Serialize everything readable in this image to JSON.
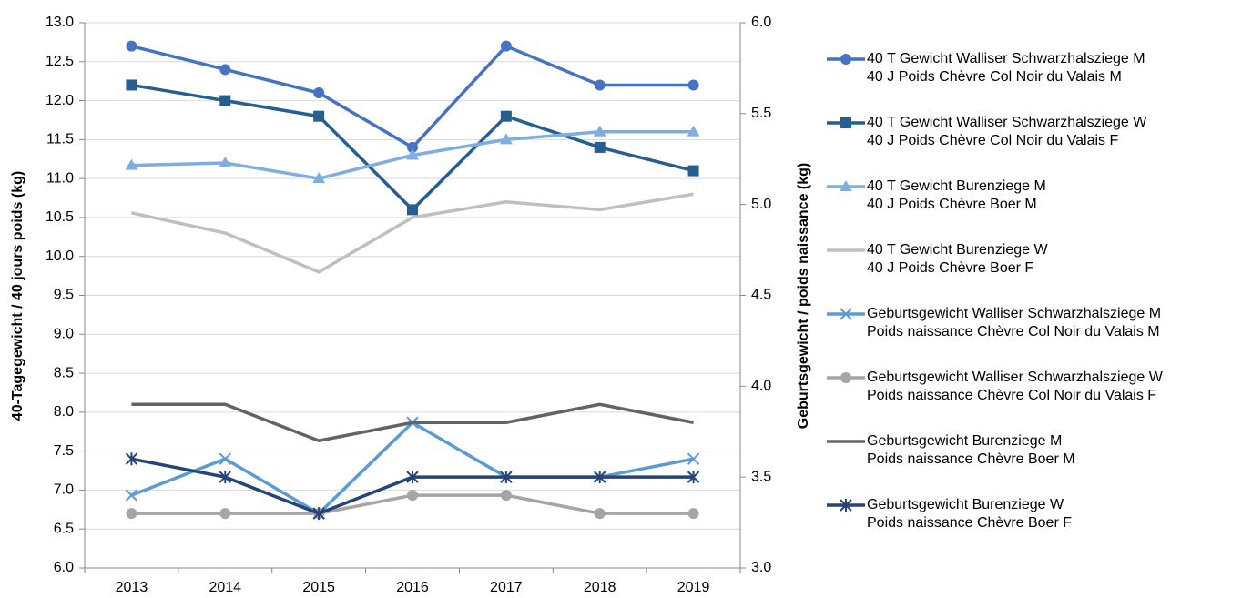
{
  "chart_data": {
    "type": "line",
    "categories": [
      "2013",
      "2014",
      "2015",
      "2016",
      "2017",
      "2018",
      "2019"
    ],
    "y_label": "40-Tagegewicht / 40 jours poids (kg)",
    "y2_label": "Geburtsgewicht / poids naissance (kg)",
    "ylim": [
      6,
      13
    ],
    "yticks": [
      {
        "value": 6,
        "label": "6.0"
      },
      6.5,
      {
        "value": 7,
        "label": "7.0"
      },
      7.5,
      {
        "value": 8,
        "label": "8.0"
      },
      8.5,
      {
        "value": 9,
        "label": "9.0"
      },
      9.5,
      {
        "value": 10,
        "label": "10.0"
      },
      10.5,
      {
        "value": 11,
        "label": "11.0"
      },
      11.5,
      {
        "value": 12,
        "label": "12.0"
      },
      12.5,
      {
        "value": 13,
        "label": "13.0"
      }
    ],
    "y2lim": [
      3,
      6
    ],
    "y2ticks": [
      {
        "value": 3,
        "label": "3.0"
      },
      3.5,
      {
        "value": 4,
        "label": "4.0"
      },
      4.5,
      {
        "value": 5,
        "label": "5.0"
      },
      5.5,
      {
        "value": 6,
        "label": "6.0"
      }
    ],
    "grid": true,
    "legend": "right",
    "series": [
      {
        "name": "40 T Gewicht Walliser Schwarzhalsziege M\n40 J Poids Chèvre Col Noir du Valais M",
        "color": "#4472c4",
        "marker": "circle",
        "values": [
          12.7,
          12.4,
          12.1,
          11.4,
          12.7,
          12.2,
          12.2
        ]
      },
      {
        "name": "40 T Gewicht Walliser Schwarzhalsziege W\n40 J Poids Chèvre Col Noir du Valais F",
        "color": "#255e91",
        "marker": "square",
        "values": [
          12.2,
          12.0,
          11.8,
          10.6,
          11.8,
          11.4,
          11.1
        ]
      },
      {
        "name": "40 T Gewicht Burenziege M\n40 J Poids Chèvre Boer M",
        "color": "#7eaee0",
        "marker": "triangle",
        "values": [
          11.17,
          11.2,
          11.0,
          11.3,
          11.5,
          11.6,
          11.6
        ]
      },
      {
        "name": "40 T Gewicht Burenziege W\n40 J Poids Chèvre Boer F",
        "color": "#bfbfbf",
        "marker": "none",
        "values": [
          10.56,
          10.3,
          9.8,
          10.5,
          10.7,
          10.6,
          10.8
        ]
      },
      {
        "name": "Geburtsgewicht Walliser Schwarzhalsziege M\nPoids naissance Chèvre Col Noir du Valais M",
        "color": "#5b9bd5",
        "marker": "x",
        "axis": "y2",
        "values": [
          3.4,
          3.6,
          3.3,
          3.8,
          3.5,
          3.5,
          3.6
        ]
      },
      {
        "name": "Geburtsgewicht Walliser Schwarzhalsziege W\nPoids naissance Chèvre Col Noir du Valais F",
        "color": "#a5a5a5",
        "marker": "circle",
        "axis": "y2",
        "values": [
          3.3,
          3.3,
          3.3,
          3.4,
          3.4,
          3.3,
          3.3
        ]
      },
      {
        "name": "Geburtsgewicht Burenziege M\nPoids naissance Chèvre Boer M",
        "color": "#636363",
        "marker": "none",
        "axis": "y2",
        "values": [
          3.9,
          3.9,
          3.7,
          3.8,
          3.8,
          3.9,
          3.8
        ]
      },
      {
        "name": "Geburtsgewicht Burenziege W\nPoids naissance Chèvre Boer F",
        "color": "#264478",
        "marker": "star",
        "axis": "y2",
        "values": [
          3.6,
          3.5,
          3.3,
          3.5,
          3.5,
          3.5,
          3.5
        ]
      }
    ]
  }
}
